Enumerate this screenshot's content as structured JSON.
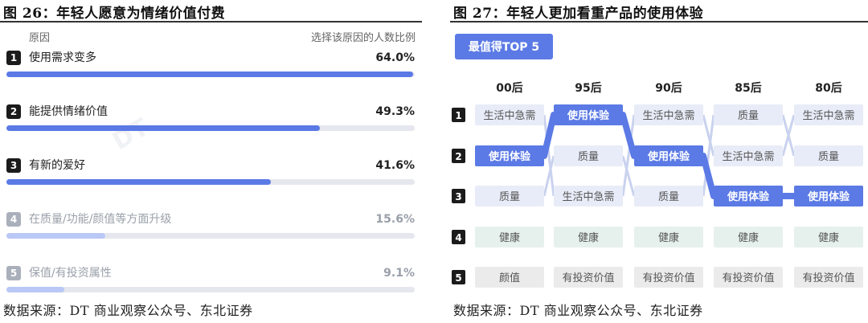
{
  "left_panel": {
    "title": "图 26：年轻人愿意为情绪价值付费",
    "header_left": "原因",
    "header_right": "选择该原因的人数比例",
    "source": "数据来源：DT 商业观察公众号、东北证券"
  },
  "right_panel": {
    "title": "图 27：年轻人更加看重产品的使用体验",
    "source": "数据来源：DT 商业观察公众号、东北证券"
  },
  "colors": {
    "accent": "#5b7ae5",
    "accent_light": "#b9c8f5",
    "cell_bg": "#e8ecf8",
    "rank_dark": "#1b1b1b",
    "rank_muted": "#aab0bb",
    "cell_green": "#e6f1ee",
    "cell_gray": "#ebebeb"
  },
  "chart_data": [
    {
      "type": "bar",
      "orientation": "horizontal",
      "categories": [
        "使用需求变多",
        "能提供情绪价值",
        "有新的爱好",
        "在质量/功能/颜值等方面升级",
        "保值/有投资属性"
      ],
      "ranks": [
        "1",
        "2",
        "3",
        "4",
        "5"
      ],
      "values": [
        64.0,
        49.3,
        41.6,
        15.6,
        9.1
      ],
      "value_labels": [
        "64.0%",
        "49.3%",
        "41.6%",
        "15.6%",
        "9.1%"
      ],
      "unit": "%",
      "xlim": [
        0,
        100
      ]
    },
    {
      "type": "table",
      "badge": "最值得TOP 5",
      "columns": [
        "00后",
        "95后",
        "90后",
        "85后",
        "80后"
      ],
      "ranks": [
        "1",
        "2",
        "3",
        "4",
        "5"
      ],
      "highlight": "使用体验",
      "rows": [
        [
          "生活中急需",
          "使用体验",
          "生活中急需",
          "质量",
          "生活中急需"
        ],
        [
          "使用体验",
          "质量",
          "使用体验",
          "生活中急需",
          "质量"
        ],
        [
          "质量",
          "生活中急需",
          "质量",
          "使用体验",
          "使用体验"
        ],
        [
          "健康",
          "健康",
          "健康",
          "健康",
          "健康"
        ],
        [
          "颜值",
          "有投资价值",
          "有投资价值",
          "有投资价值",
          "有投资价值"
        ]
      ]
    }
  ]
}
